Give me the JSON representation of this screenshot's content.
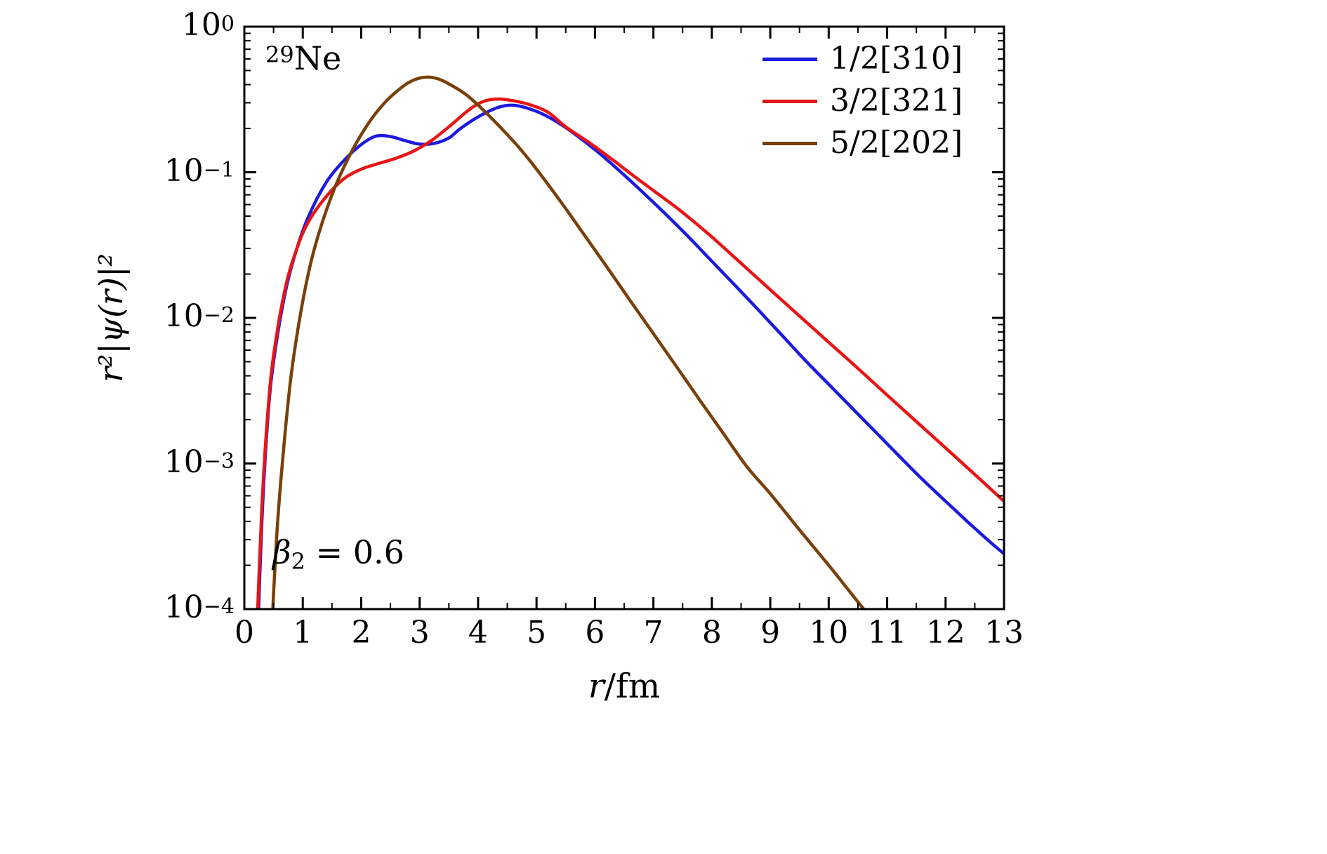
{
  "chart_data": {
    "type": "line",
    "title": "",
    "xlabel_var": "r",
    "xlabel_rest": "/fm",
    "ylabel": "r²|ψ(r)|²",
    "xlim": [
      0,
      13
    ],
    "ylim_exponents": [
      -4,
      0
    ],
    "x_ticks": [
      0,
      1,
      2,
      3,
      4,
      5,
      6,
      7,
      8,
      9,
      10,
      11,
      12,
      13
    ],
    "y_tick_exponents": [
      0,
      -1,
      -2,
      -3,
      -4
    ],
    "grid": false,
    "legend_position": "top-right",
    "series": [
      {
        "name": "1/2[310]",
        "color": "#1a1ae0",
        "points": [
          [
            0.22,
            5e-05
          ],
          [
            0.3,
            0.0004
          ],
          [
            0.4,
            0.002
          ],
          [
            0.5,
            0.005
          ],
          [
            0.7,
            0.015
          ],
          [
            0.9,
            0.03
          ],
          [
            1.1,
            0.05
          ],
          [
            1.4,
            0.085
          ],
          [
            1.7,
            0.12
          ],
          [
            2.0,
            0.155
          ],
          [
            2.25,
            0.177
          ],
          [
            2.5,
            0.176
          ],
          [
            2.75,
            0.165
          ],
          [
            3.0,
            0.156
          ],
          [
            3.25,
            0.158
          ],
          [
            3.5,
            0.172
          ],
          [
            3.7,
            0.2
          ],
          [
            4.0,
            0.24
          ],
          [
            4.3,
            0.275
          ],
          [
            4.5,
            0.288
          ],
          [
            4.7,
            0.285
          ],
          [
            5.0,
            0.262
          ],
          [
            5.3,
            0.228
          ],
          [
            5.6,
            0.19
          ],
          [
            6.0,
            0.143
          ],
          [
            6.4,
            0.104
          ],
          [
            6.8,
            0.074
          ],
          [
            7.2,
            0.052
          ],
          [
            7.6,
            0.036
          ],
          [
            8.0,
            0.0245
          ],
          [
            8.4,
            0.0167
          ],
          [
            8.8,
            0.0113
          ],
          [
            9.2,
            0.0076
          ],
          [
            9.6,
            0.0051
          ],
          [
            10.0,
            0.0035
          ],
          [
            10.4,
            0.0024
          ],
          [
            10.8,
            0.00165
          ],
          [
            11.2,
            0.00113
          ],
          [
            11.6,
            0.00078
          ],
          [
            12.0,
            0.00055
          ],
          [
            12.4,
            0.00039
          ],
          [
            12.8,
            0.00028
          ],
          [
            13.0,
            0.00024
          ]
        ]
      },
      {
        "name": "3/2[321]",
        "color": "#e81515",
        "points": [
          [
            0.2,
            5e-05
          ],
          [
            0.3,
            0.0005
          ],
          [
            0.4,
            0.0022
          ],
          [
            0.5,
            0.0055
          ],
          [
            0.7,
            0.016
          ],
          [
            0.9,
            0.03
          ],
          [
            1.1,
            0.046
          ],
          [
            1.4,
            0.068
          ],
          [
            1.7,
            0.09
          ],
          [
            2.0,
            0.105
          ],
          [
            2.3,
            0.115
          ],
          [
            2.6,
            0.125
          ],
          [
            2.9,
            0.14
          ],
          [
            3.2,
            0.165
          ],
          [
            3.5,
            0.205
          ],
          [
            3.8,
            0.26
          ],
          [
            4.0,
            0.295
          ],
          [
            4.2,
            0.315
          ],
          [
            4.4,
            0.318
          ],
          [
            4.6,
            0.31
          ],
          [
            4.9,
            0.29
          ],
          [
            5.2,
            0.258
          ],
          [
            5.5,
            0.205
          ],
          [
            5.9,
            0.16
          ],
          [
            6.3,
            0.122
          ],
          [
            6.7,
            0.092
          ],
          [
            7.1,
            0.07
          ],
          [
            7.5,
            0.053
          ],
          [
            8.0,
            0.036
          ],
          [
            8.5,
            0.0237
          ],
          [
            9.0,
            0.0156
          ],
          [
            9.5,
            0.0103
          ],
          [
            10.0,
            0.0068
          ],
          [
            10.5,
            0.0045
          ],
          [
            11.0,
            0.00295
          ],
          [
            11.5,
            0.00194
          ],
          [
            12.0,
            0.00128
          ],
          [
            12.5,
            0.00084
          ],
          [
            13.0,
            0.00055
          ]
        ]
      },
      {
        "name": "5/2[202]",
        "color": "#7a4009",
        "points": [
          [
            0.45,
            5e-05
          ],
          [
            0.55,
            0.0003
          ],
          [
            0.65,
            0.001
          ],
          [
            0.8,
            0.004
          ],
          [
            1.0,
            0.013
          ],
          [
            1.2,
            0.03
          ],
          [
            1.5,
            0.07
          ],
          [
            1.8,
            0.13
          ],
          [
            2.1,
            0.21
          ],
          [
            2.4,
            0.3
          ],
          [
            2.7,
            0.385
          ],
          [
            2.9,
            0.43
          ],
          [
            3.1,
            0.45
          ],
          [
            3.3,
            0.44
          ],
          [
            3.5,
            0.405
          ],
          [
            3.8,
            0.34
          ],
          [
            4.1,
            0.265
          ],
          [
            4.4,
            0.2
          ],
          [
            4.7,
            0.148
          ],
          [
            5.0,
            0.105
          ],
          [
            5.4,
            0.064
          ],
          [
            5.8,
            0.038
          ],
          [
            6.2,
            0.0225
          ],
          [
            6.6,
            0.0132
          ],
          [
            7.0,
            0.0078
          ],
          [
            7.4,
            0.0046
          ],
          [
            7.8,
            0.0027
          ],
          [
            8.2,
            0.0016
          ],
          [
            8.6,
            0.00095
          ],
          [
            9.0,
            0.00062
          ],
          [
            9.5,
            0.00035
          ],
          [
            10.0,
            0.0002
          ],
          [
            10.5,
            0.000112
          ],
          [
            10.8,
            8e-05
          ]
        ]
      }
    ]
  },
  "annotations": {
    "isotope": {
      "sup": "29",
      "text": "Ne"
    },
    "beta": {
      "symbol": "β",
      "sub": "2",
      "value": " = 0.6"
    }
  }
}
